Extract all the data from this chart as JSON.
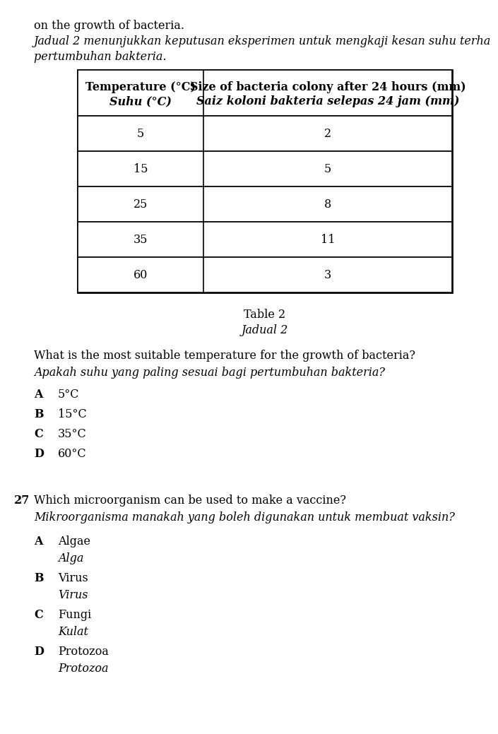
{
  "bg_color": "#ffffff",
  "top_text_line1": "on the growth of bacteria.",
  "top_italic_line1": "Jadual 2 menunjukkan keputusan eksperimen untuk mengkaji kesan suhu terha",
  "top_italic_line2": "pertumbuhan bakteria.",
  "table_header_col1_line1": "Temperature (°C)",
  "table_header_col1_line2": "Suhu (°C)",
  "table_header_col2_line1": "Size of bacteria colony after 24 hours (mm)",
  "table_header_col2_line2": "Saiz koloni bakteria selepas 24 jam (mm)",
  "table_data": [
    [
      "5",
      "2"
    ],
    [
      "15",
      "5"
    ],
    [
      "25",
      "8"
    ],
    [
      "35",
      "11"
    ],
    [
      "60",
      "3"
    ]
  ],
  "table_caption_line1": "Table 2",
  "table_caption_line2": "Jadual 2",
  "q_text": "What is the most suitable temperature for the growth of bacteria?",
  "q_italic": "Apakah suhu yang paling sesuai bagi pertumbuhan bakteria?",
  "options": [
    [
      "A",
      "5°C"
    ],
    [
      "B",
      "15°C"
    ],
    [
      "C",
      "35°C"
    ],
    [
      "D",
      "60°C"
    ]
  ],
  "q27_number": "27",
  "q27_text": "Which microorganism can be used to make a vaccine?",
  "q27_italic": "Mikroorganisma manakah yang boleh digunakan untuk membuat vaksin?",
  "q27_options": [
    [
      "A",
      "Algae",
      "Alga"
    ],
    [
      "B",
      "Virus",
      "Virus"
    ],
    [
      "C",
      "Fungi",
      "Kulat"
    ],
    [
      "D",
      "Protozoa",
      "Protozoa"
    ]
  ]
}
